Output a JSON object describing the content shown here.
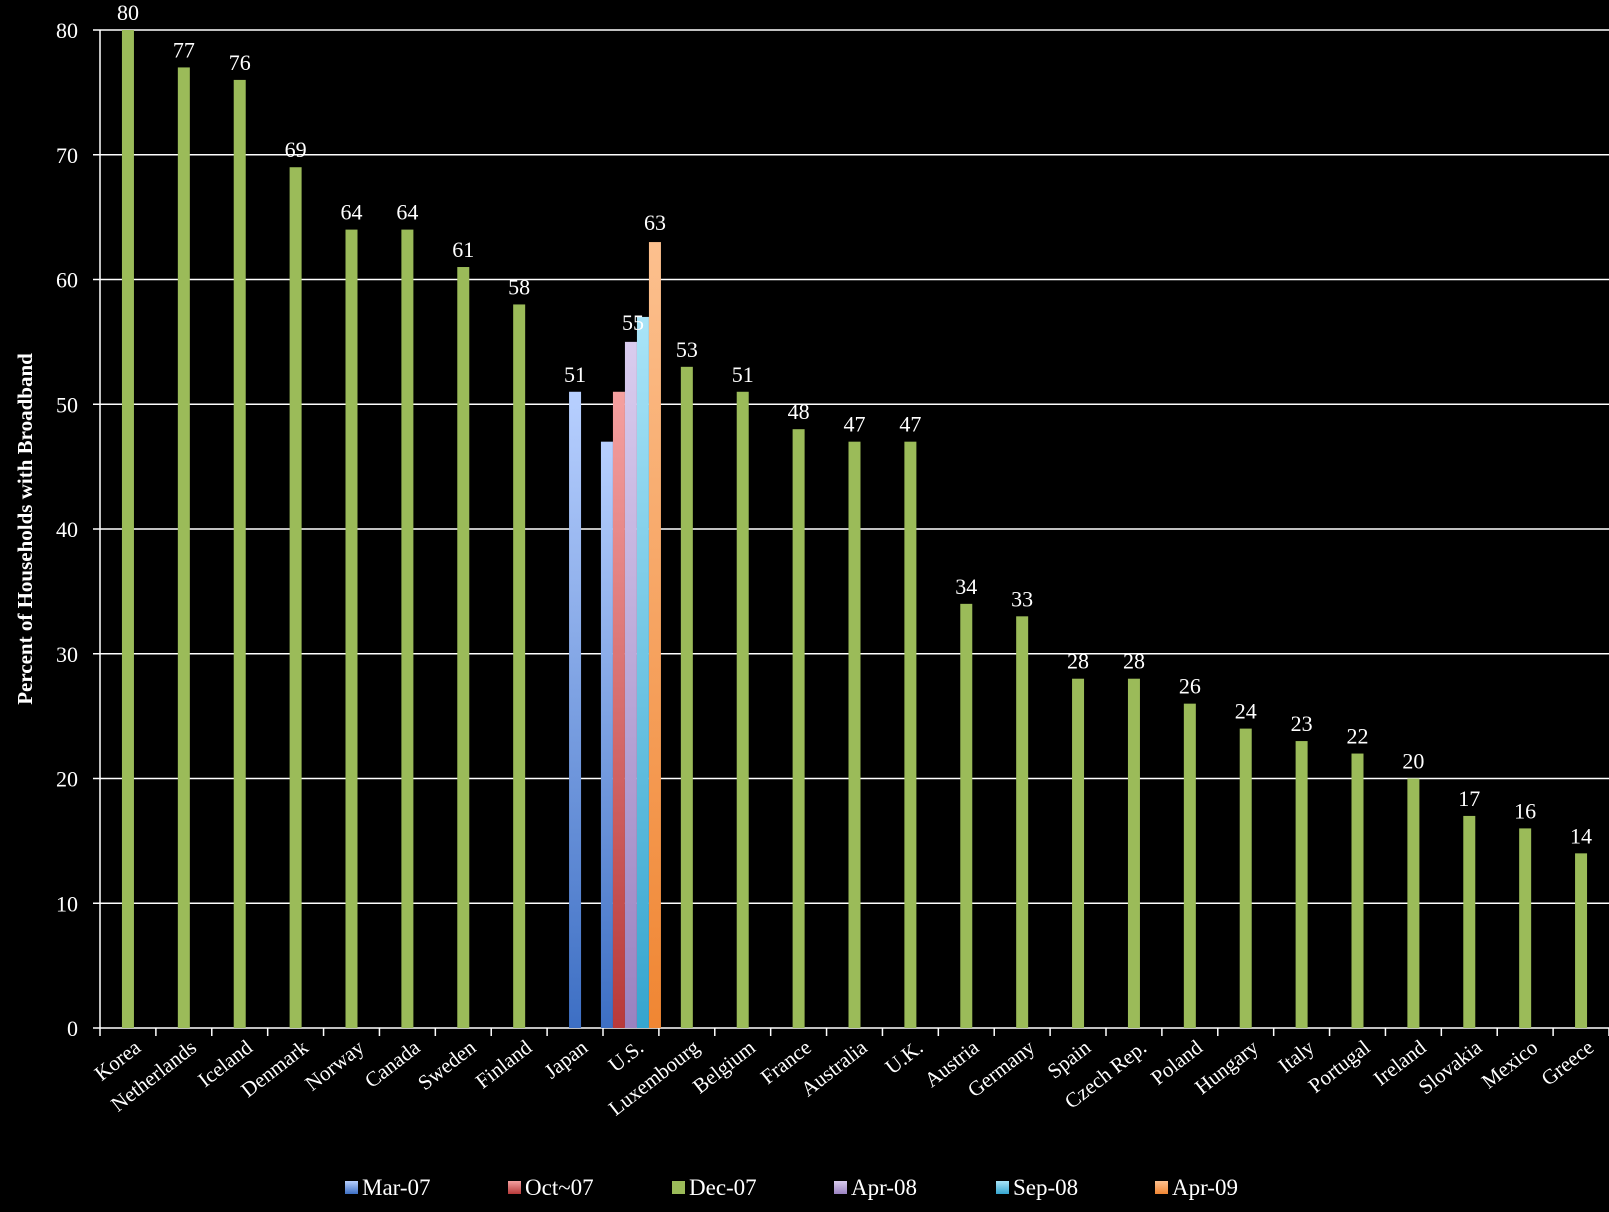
{
  "chart_data": {
    "type": "bar",
    "ylabel": "Percent of Households with Broadband",
    "xlabel": "",
    "ylim": [
      0,
      80
    ],
    "yticks": [
      0,
      10,
      20,
      30,
      40,
      50,
      60,
      70,
      80
    ],
    "grid": true,
    "legend_position": "bottom",
    "categories": [
      "Korea",
      "Netherlands",
      "Iceland",
      "Denmark",
      "Norway",
      "Canada",
      "Sweden",
      "Finland",
      "Japan",
      "U.S.",
      "Luxembourg",
      "Belgium",
      "France",
      "Australia",
      "U.K.",
      "Austria",
      "Germany",
      "Spain",
      "Czech Rep.",
      "Poland",
      "Hungary",
      "Italy",
      "Portugal",
      "Ireland",
      "Slovakia",
      "Mexico",
      "Greece"
    ],
    "series": [
      {
        "name": "Mar-07",
        "color": "#4a7fd0",
        "values": [
          null,
          null,
          null,
          null,
          null,
          null,
          null,
          null,
          51,
          47,
          null,
          null,
          null,
          null,
          null,
          null,
          null,
          null,
          null,
          null,
          null,
          null,
          null,
          null,
          null,
          null,
          null
        ]
      },
      {
        "name": "Oct~07",
        "color": "#c94a4a",
        "values": [
          null,
          null,
          null,
          null,
          null,
          null,
          null,
          null,
          null,
          51,
          null,
          null,
          null,
          null,
          null,
          null,
          null,
          null,
          null,
          null,
          null,
          null,
          null,
          null,
          null,
          null,
          null
        ]
      },
      {
        "name": "Dec-07",
        "color": "#9bbb59",
        "values": [
          80,
          77,
          76,
          69,
          64,
          64,
          61,
          58,
          null,
          null,
          53,
          51,
          48,
          47,
          47,
          34,
          33,
          28,
          28,
          26,
          24,
          23,
          22,
          20,
          17,
          16,
          14
        ]
      },
      {
        "name": "Apr-08",
        "color": "#a892c8",
        "values": [
          null,
          null,
          null,
          null,
          null,
          null,
          null,
          null,
          null,
          55,
          null,
          null,
          null,
          null,
          null,
          null,
          null,
          null,
          null,
          null,
          null,
          null,
          null,
          null,
          null,
          null,
          null
        ]
      },
      {
        "name": "Sep-08",
        "color": "#4bb4d6",
        "values": [
          null,
          null,
          null,
          null,
          null,
          null,
          null,
          null,
          null,
          57,
          null,
          null,
          null,
          null,
          null,
          null,
          null,
          null,
          null,
          null,
          null,
          null,
          null,
          null,
          null,
          null,
          null
        ]
      },
      {
        "name": "Apr-09",
        "color": "#f79646",
        "values": [
          null,
          null,
          null,
          null,
          null,
          null,
          null,
          null,
          null,
          63,
          null,
          null,
          null,
          null,
          null,
          null,
          null,
          null,
          null,
          null,
          null,
          null,
          null,
          null,
          null,
          null,
          null
        ]
      }
    ],
    "data_labels": [
      "80",
      "77",
      "76",
      "69",
      "64",
      "64",
      "61",
      "58",
      "51",
      "55",
      "63",
      "53",
      "51",
      "48",
      "47",
      "47",
      "34",
      "33",
      "28",
      "28",
      "26",
      "24",
      "23",
      "22",
      "20",
      "17",
      "16",
      "14"
    ]
  }
}
